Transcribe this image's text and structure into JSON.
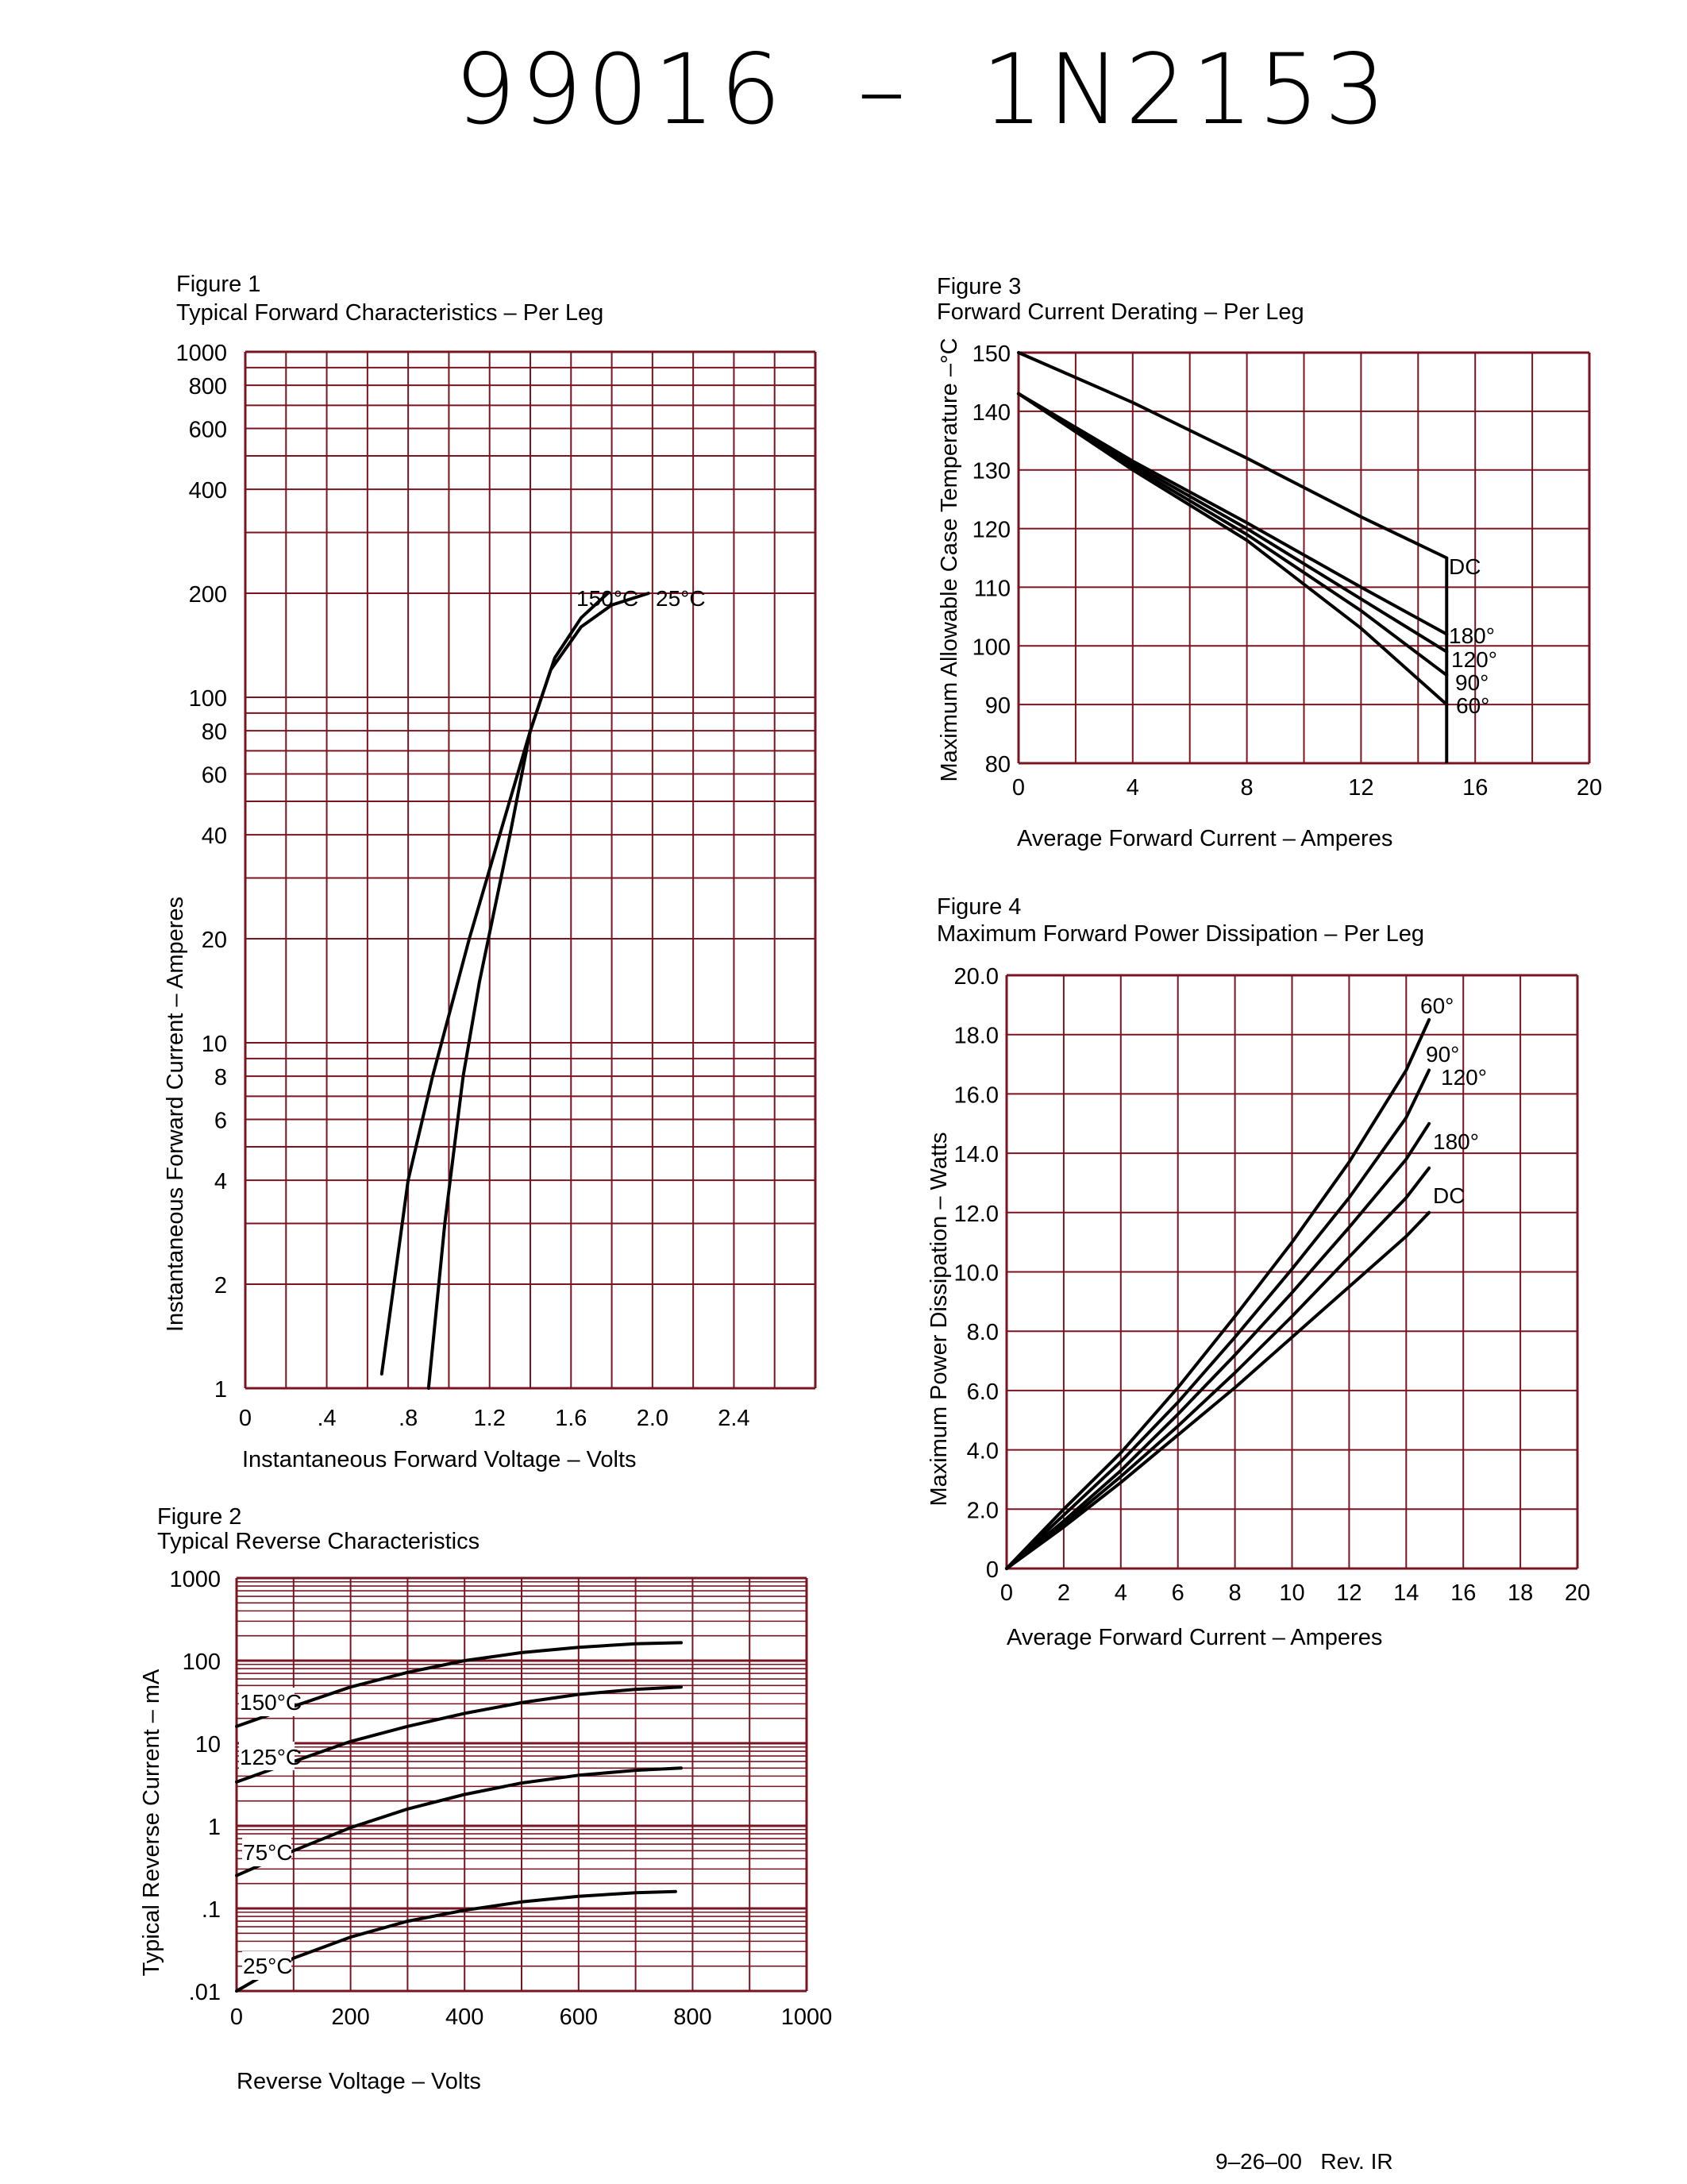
{
  "header": {
    "part_numbers": "99016  –  1N2153"
  },
  "footer": {
    "revision": "9–26–00   Rev. IR"
  },
  "colors": {
    "grid": "#7a1420",
    "curve": "#000000",
    "background": "#ffffff"
  },
  "chart_data": [
    {
      "id": "fig1",
      "type": "line",
      "figure_label": "Figure 1",
      "title": "Typical Forward Characteristics – Per Leg",
      "xlabel": "Instantaneous Forward Voltage – Volts",
      "ylabel": "Instantaneous Forward Current – Amperes",
      "yscale": "log",
      "xlim": [
        0,
        2.8
      ],
      "ylim": [
        1,
        1000
      ],
      "xticks": [
        "0",
        ".4",
        ".8",
        "1.2",
        "1.6",
        "2.0",
        "2.4"
      ],
      "yticks": [
        "1",
        "2",
        "4",
        "6",
        "8",
        "10",
        "20",
        "40",
        "60",
        "80",
        "100",
        "200",
        "400",
        "600",
        "800",
        "1000"
      ],
      "series_labels": [
        "150°C",
        "25°C"
      ],
      "series": [
        {
          "name": "150°C",
          "x": [
            0.67,
            0.8,
            0.92,
            1.0,
            1.1,
            1.25,
            1.4,
            1.52,
            1.65,
            1.78
          ],
          "y": [
            1.1,
            4,
            8,
            12,
            20,
            40,
            80,
            130,
            170,
            200
          ]
        },
        {
          "name": "25°C",
          "x": [
            0.9,
            0.98,
            1.07,
            1.15,
            1.3,
            1.4,
            1.5,
            1.65,
            1.8,
            1.98
          ],
          "y": [
            1,
            3,
            8,
            15,
            40,
            80,
            120,
            160,
            185,
            200
          ]
        }
      ]
    },
    {
      "id": "fig2",
      "type": "line",
      "figure_label": "Figure 2",
      "title": "Typical Reverse Characteristics",
      "xlabel": "Reverse Voltage – Volts",
      "ylabel": "Typical Reverse Current – mA",
      "yscale": "log",
      "xlim": [
        0,
        1000
      ],
      "ylim": [
        0.01,
        1000
      ],
      "xticks": [
        "0",
        "200",
        "400",
        "600",
        "800",
        "1000"
      ],
      "yticks": [
        "1000",
        "100",
        "10",
        "1",
        ".1",
        ".01"
      ],
      "series_labels": [
        "150°C",
        "125°C",
        "75°C",
        "25°C"
      ],
      "series": [
        {
          "name": "150°C",
          "x": [
            0,
            100,
            200,
            300,
            400,
            500,
            600,
            700,
            780
          ],
          "y": [
            16,
            28,
            48,
            72,
            100,
            125,
            145,
            160,
            165
          ]
        },
        {
          "name": "125°C",
          "x": [
            0,
            100,
            200,
            300,
            400,
            500,
            600,
            700,
            780
          ],
          "y": [
            3.4,
            6,
            10.5,
            16,
            23,
            31,
            39,
            45,
            48
          ]
        },
        {
          "name": "75°C",
          "x": [
            0,
            100,
            200,
            300,
            400,
            500,
            600,
            700,
            780
          ],
          "y": [
            0.25,
            0.5,
            0.95,
            1.6,
            2.4,
            3.3,
            4.1,
            4.7,
            5.0
          ]
        },
        {
          "name": "25°C",
          "x": [
            0,
            100,
            200,
            300,
            400,
            500,
            600,
            700,
            770
          ],
          "y": [
            0.01,
            0.025,
            0.045,
            0.07,
            0.095,
            0.12,
            0.14,
            0.155,
            0.16
          ]
        }
      ]
    },
    {
      "id": "fig3",
      "type": "line",
      "figure_label": "Figure 3",
      "title": "Forward Current Derating – Per Leg",
      "xlabel": "Average Forward Current – Amperes",
      "ylabel": "Maximum Allowable Case Temperature –°C",
      "xlim": [
        0,
        20
      ],
      "ylim": [
        80,
        150
      ],
      "xticks": [
        "0",
        "4",
        "8",
        "12",
        "16",
        "20"
      ],
      "yticks": [
        "80",
        "90",
        "100",
        "110",
        "120",
        "130",
        "140",
        "150"
      ],
      "series_labels": [
        "DC",
        "180°",
        "120°",
        "90°",
        "60°"
      ],
      "series": [
        {
          "name": "DC",
          "x": [
            0,
            4,
            8,
            12,
            15
          ],
          "y": [
            150,
            141.5,
            132,
            122,
            115
          ]
        },
        {
          "name": "180°",
          "x": [
            0,
            4,
            8,
            12,
            15
          ],
          "y": [
            143,
            131.5,
            121,
            110,
            102
          ]
        },
        {
          "name": "120°",
          "x": [
            0,
            4,
            8,
            12,
            15
          ],
          "y": [
            143,
            131,
            120,
            108,
            99
          ]
        },
        {
          "name": "90°",
          "x": [
            0,
            4,
            8,
            12,
            15
          ],
          "y": [
            143,
            130.5,
            119,
            106,
            95
          ]
        },
        {
          "name": "60°",
          "x": [
            0,
            4,
            8,
            12,
            15
          ],
          "y": [
            143,
            130,
            118,
            103,
            90
          ]
        }
      ],
      "vertical_limit": {
        "x": 15,
        "y": [
          80,
          115
        ]
      }
    },
    {
      "id": "fig4",
      "type": "line",
      "figure_label": "Figure 4",
      "title": "Maximum Forward Power Dissipation – Per Leg",
      "xlabel": "Average Forward Current – Amperes",
      "ylabel": "Maximum Power Dissipation – Watts",
      "xlim": [
        0,
        20
      ],
      "ylim": [
        0,
        20
      ],
      "xticks": [
        "0",
        "2",
        "4",
        "6",
        "8",
        "10",
        "12",
        "14",
        "16",
        "18",
        "20"
      ],
      "yticks": [
        "0",
        "2.0",
        "4.0",
        "6.0",
        "8.0",
        "10.0",
        "12.0",
        "14.0",
        "16.0",
        "18.0",
        "20.0"
      ],
      "series_labels": [
        "60°",
        "90°",
        "120°",
        "180°",
        "DC"
      ],
      "series": [
        {
          "name": "60°",
          "x": [
            0,
            2,
            4,
            6,
            8,
            10,
            12,
            14,
            14.8
          ],
          "y": [
            0,
            2.0,
            3.9,
            6.1,
            8.5,
            11.0,
            13.7,
            16.8,
            18.5
          ]
        },
        {
          "name": "90°",
          "x": [
            0,
            2,
            4,
            6,
            8,
            10,
            12,
            14,
            14.8
          ],
          "y": [
            0,
            1.8,
            3.6,
            5.6,
            7.8,
            10.1,
            12.5,
            15.2,
            16.8
          ]
        },
        {
          "name": "120°",
          "x": [
            0,
            2,
            4,
            6,
            8,
            10,
            12,
            14,
            14.8
          ],
          "y": [
            0,
            1.6,
            3.3,
            5.2,
            7.2,
            9.3,
            11.5,
            13.8,
            15.0
          ]
        },
        {
          "name": "180°",
          "x": [
            0,
            2,
            4,
            6,
            8,
            10,
            12,
            14,
            14.8
          ],
          "y": [
            0,
            1.5,
            3.1,
            4.8,
            6.6,
            8.5,
            10.5,
            12.5,
            13.5
          ]
        },
        {
          "name": "DC",
          "x": [
            0,
            2,
            4,
            6,
            8,
            10,
            12,
            14,
            14.8
          ],
          "y": [
            0,
            1.4,
            2.9,
            4.5,
            6.1,
            7.8,
            9.5,
            11.2,
            12.0
          ]
        }
      ]
    }
  ]
}
